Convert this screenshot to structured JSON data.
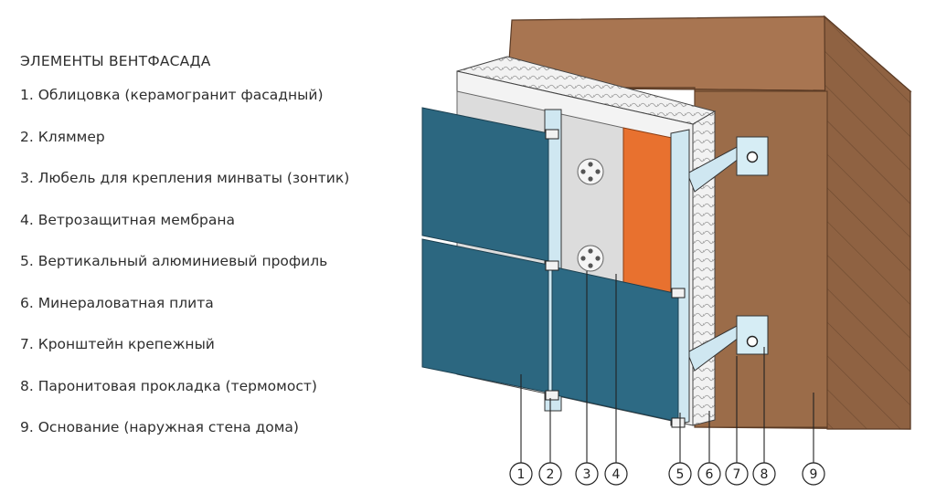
{
  "title": "ЭЛЕМЕНТЫ ВЕНТФАСАДА",
  "items": [
    {
      "num": "1",
      "text": "1. Облицовка (керамогранит фасадный)"
    },
    {
      "num": "2",
      "text": "2. Кляммер"
    },
    {
      "num": "3",
      "text": "3. Любель для крепления минваты (зонтик)"
    },
    {
      "num": "4",
      "text": "4. Ветрозащитная мембрана"
    },
    {
      "num": "5",
      "text": "5. Вертикальный алюминиевый профиль"
    },
    {
      "num": "6",
      "text": "6. Минераловатная плита"
    },
    {
      "num": "7",
      "text": "7. Кронштейн крепежный"
    },
    {
      "num": "8",
      "text": "8. Паронитовая прокладка (термомост)"
    },
    {
      "num": "9",
      "text": "9. Основание (наружная стена дома)"
    }
  ],
  "colors": {
    "wall": "#9b6c49",
    "wall_side": "#8a5e3f",
    "insulation": "#f1f1f1",
    "membrane": "#dcdcdc",
    "orange_panel": "#e8712f",
    "profile": "#cfe7f1",
    "cladding": "#2c6780",
    "outline": "#333333"
  }
}
